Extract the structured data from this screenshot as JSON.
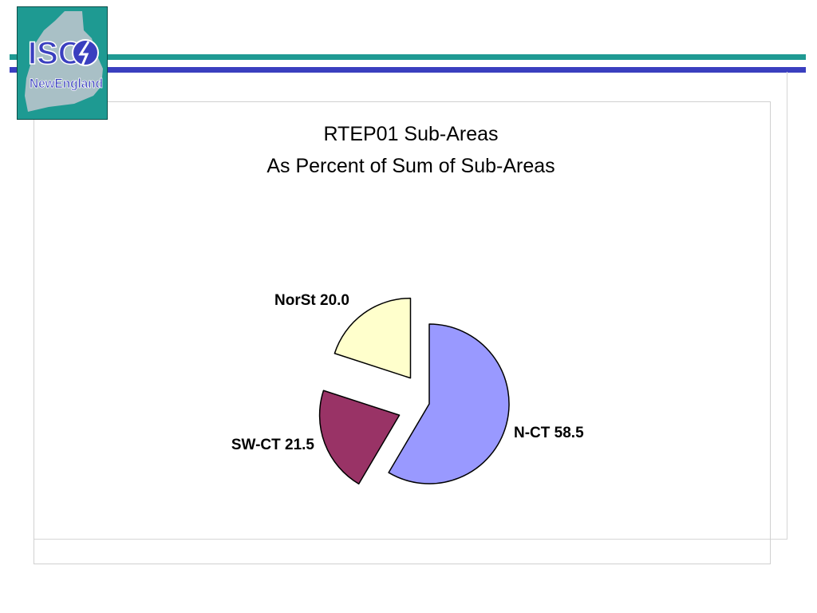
{
  "logo": {
    "text_top": "ISO",
    "text_bottom": "NewEngland"
  },
  "colors": {
    "teal_rule": "#1f9a93",
    "blue_rule": "#3a3fbf"
  },
  "chart_data": {
    "type": "pie",
    "title": "RTEP01 Sub-Areas",
    "subtitle": "As Percent of Sum of Sub-Areas",
    "slices": [
      {
        "name": "N-CT",
        "value": 58.5,
        "color": "#9999ff",
        "label": "N-CT 58.5",
        "exploded": false
      },
      {
        "name": "SW-CT",
        "value": 21.5,
        "color": "#993366",
        "label": "SW-CT 21.5",
        "exploded": true
      },
      {
        "name": "NorSt",
        "value": 20.0,
        "color": "#ffffcc",
        "label": "NorSt 20.0",
        "exploded": true
      }
    ]
  }
}
